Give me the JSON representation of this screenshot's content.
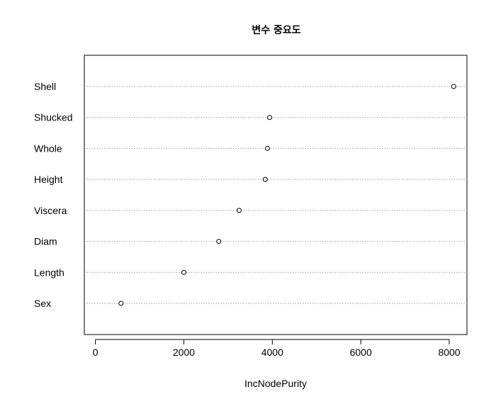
{
  "chart_data": {
    "type": "scatter",
    "title": "변수 중요도",
    "xlabel": "IncNodePurity",
    "ylabel": "",
    "xlim": [
      -250,
      8400
    ],
    "xticks": [
      0,
      2000,
      4000,
      6000,
      8000
    ],
    "grid": "dotted horizontal guide lines",
    "marker": "open circle",
    "categories": [
      "Shell",
      "Shucked",
      "Whole",
      "Height",
      "Viscera",
      "Diam",
      "Length",
      "Sex"
    ],
    "values": [
      8100,
      3940,
      3890,
      3840,
      3250,
      2790,
      2000,
      580
    ]
  }
}
